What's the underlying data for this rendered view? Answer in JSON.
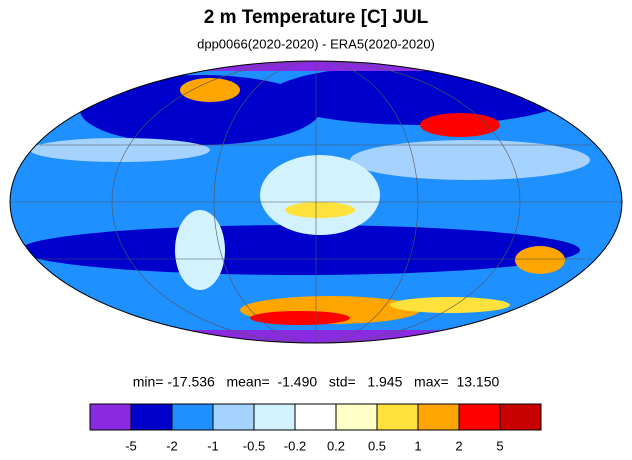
{
  "header": {
    "title": "2 m Temperature [C] JUL",
    "subtitle": "dpp0066(2020-2020) - ERA5(2020-2020)"
  },
  "stats": "min= -17.536   mean=  -1.490   std=   1.945   max=  13.150",
  "colorbar": {
    "colors": [
      "#8a2be2",
      "#0000cd",
      "#1e90ff",
      "#a6d2ff",
      "#d2f2ff",
      "#ffffff",
      "#ffffc8",
      "#ffe13c",
      "#ffa500",
      "#ff0000",
      "#c80000"
    ],
    "labels": [
      -5,
      -2,
      -1,
      -0.5,
      -0.2,
      0.2,
      0.5,
      1,
      2,
      5
    ]
  }
}
